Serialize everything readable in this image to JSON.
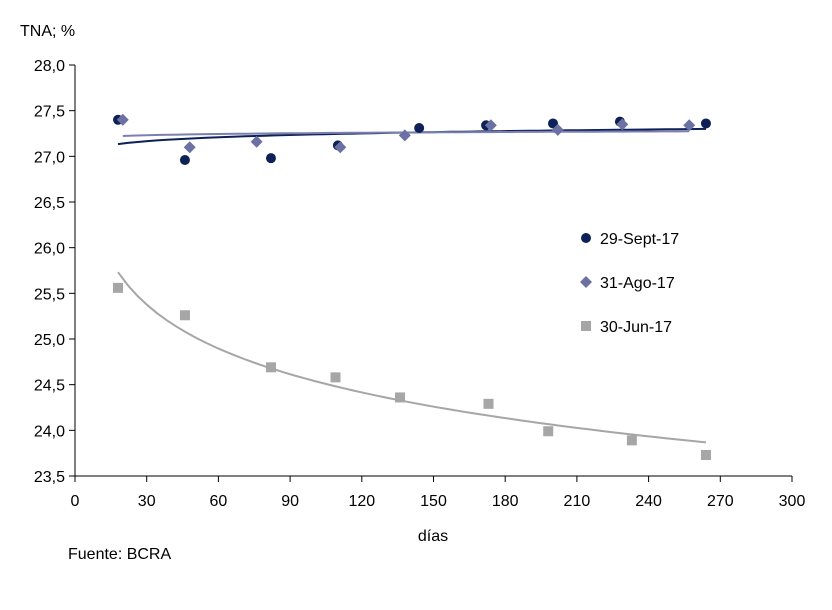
{
  "chart_data": {
    "type": "scatter",
    "ylabel": "TNA; %",
    "xlabel": "días",
    "source": "Fuente:  BCRA",
    "xlim": [
      0,
      300
    ],
    "ylim": [
      23.5,
      28.0
    ],
    "xticks": [
      0,
      30,
      60,
      90,
      120,
      150,
      180,
      210,
      240,
      270,
      300
    ],
    "yticks": [
      "23,5",
      "24,0",
      "24,5",
      "25,0",
      "25,5",
      "26,0",
      "26,5",
      "27,0",
      "27,5",
      "28,0"
    ],
    "grid": false,
    "legend_position": "right",
    "trendline": "logarithmic",
    "series": [
      {
        "name": "29-Sept-17",
        "marker": "circle",
        "color": "#0d2156",
        "trend_color": "#0d2156",
        "x": [
          18,
          46,
          82,
          110,
          144,
          172,
          200,
          228,
          264
        ],
        "y": [
          27.4,
          26.96,
          26.98,
          27.12,
          27.31,
          27.34,
          27.36,
          27.38,
          27.36
        ]
      },
      {
        "name": "31-Ago-17",
        "marker": "diamond",
        "color": "#6b72a3",
        "trend_color": "#7a80b0",
        "x": [
          20,
          48,
          76,
          111,
          138,
          174,
          202,
          229,
          257
        ],
        "y": [
          27.4,
          27.1,
          27.16,
          27.1,
          27.23,
          27.34,
          27.29,
          27.35,
          27.34
        ]
      },
      {
        "name": "30-Jun-17",
        "marker": "square",
        "color": "#a6a6a6",
        "trend_color": "#a6a6a6",
        "x": [
          18,
          46,
          82,
          109,
          136,
          173,
          198,
          233,
          264
        ],
        "y": [
          25.56,
          25.26,
          24.69,
          24.58,
          24.36,
          24.29,
          23.99,
          23.89,
          23.73
        ]
      }
    ]
  }
}
